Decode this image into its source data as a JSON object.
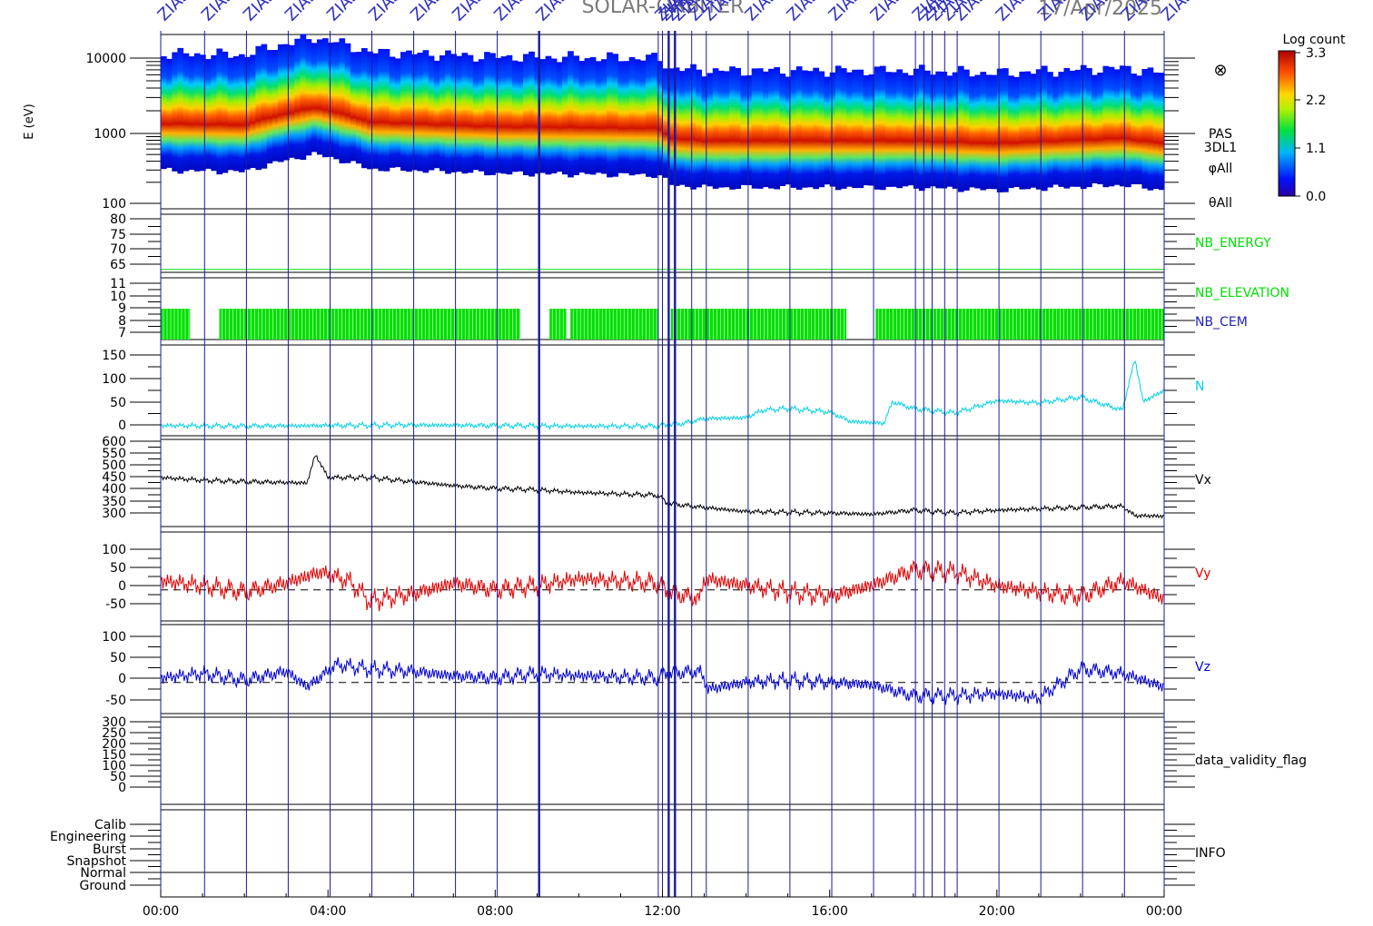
{
  "header": {
    "instrument": "SOLAR-ORBITER",
    "date": "17/Apr/2025",
    "marker_label": "ZIAS"
  },
  "colorbar": {
    "title": "Log count",
    "ticks": [
      "3.3",
      "2.2",
      "1.1",
      "0.0"
    ],
    "range": [
      0.0,
      3.3
    ]
  },
  "spectrogram": {
    "ylabel": "E (eV)",
    "yticks": [
      "10000",
      "1000",
      "100"
    ],
    "labels": [
      "PAS",
      "3DL1",
      "φAll",
      "θAll"
    ],
    "symbol": "⊗"
  },
  "x_axis": {
    "ticks": [
      "00:00",
      "04:00",
      "08:00",
      "12:00",
      "16:00",
      "20:00",
      "00:00"
    ]
  },
  "colors": {
    "N": "#00d2e6",
    "Vx": "#000000",
    "Vy": "#e00000",
    "Vz": "#0000d0",
    "nb": "#00e000",
    "marker": "#1a1aa0"
  },
  "panels": [
    {
      "name": "NB_ENERGY",
      "label": "NB_ENERGY",
      "yticks": [
        "80",
        "75",
        "70",
        "65"
      ]
    },
    {
      "name": "NB_ELEVATION",
      "label": "NB_ELEVATION",
      "label2": "NB_CEM",
      "yticks": [
        "11",
        "10",
        "9",
        "8",
        "7"
      ]
    },
    {
      "name": "N",
      "label": "N",
      "yticks": [
        "150",
        "100",
        "50",
        "0"
      ]
    },
    {
      "name": "Vx",
      "label": "Vx",
      "yticks": [
        "600",
        "550",
        "500",
        "450",
        "400",
        "350",
        "300"
      ]
    },
    {
      "name": "Vy",
      "label": "Vy",
      "yticks": [
        "100",
        "50",
        "0",
        "-50"
      ]
    },
    {
      "name": "Vz",
      "label": "Vz",
      "yticks": [
        "100",
        "50",
        "0",
        "-50"
      ]
    },
    {
      "name": "data_validity_flag",
      "label": "data_validity_flag",
      "yticks": [
        "300",
        "250",
        "200",
        "150",
        "100",
        "50",
        "0"
      ]
    },
    {
      "name": "INFO",
      "label": "INFO",
      "yticks": [
        "Calib",
        "Engineering",
        "Burst",
        "Snapshot",
        "Normal",
        "Ground"
      ]
    }
  ],
  "chart_data": [
    {
      "type": "heatmap",
      "title": "SOLAR-ORBITER 17/Apr/2025",
      "xlabel": "",
      "ylabel": "E (eV)",
      "y_scale": "log",
      "ylim": [
        100,
        15000
      ],
      "colorbar_label": "Log count",
      "colorbar_range": [
        0.0,
        3.3
      ],
      "series": [
        {
          "name": "peak_energy_eV",
          "x_hours": [
            0,
            2,
            3.7,
            5,
            8,
            11.9,
            12.2,
            13,
            16,
            18,
            20,
            23,
            24
          ],
          "values": [
            1100,
            1050,
            1800,
            1150,
            1000,
            950,
            700,
            650,
            650,
            650,
            600,
            700,
            600
          ]
        }
      ]
    },
    {
      "type": "line",
      "title": "",
      "ylabel": "",
      "ylim": [
        0,
        160
      ],
      "series": [
        {
          "name": "N",
          "x_hours": [
            0,
            2,
            4,
            6,
            8,
            10,
            11.9,
            12.5,
            13,
            14,
            14.4,
            15,
            16,
            16.5,
            17.3,
            17.5,
            18,
            19,
            20,
            21,
            22,
            23,
            23.3,
            23.5,
            24
          ],
          "values": [
            18,
            17,
            18,
            19,
            18,
            17,
            17,
            22,
            30,
            32,
            45,
            48,
            42,
            25,
            22,
            60,
            48,
            40,
            62,
            58,
            68,
            45,
            135,
            60,
            80
          ]
        }
      ]
    },
    {
      "type": "line",
      "title": "",
      "ylabel": "",
      "ylim": [
        280,
        600
      ],
      "series": [
        {
          "name": "Vx",
          "x_hours": [
            0,
            1,
            2,
            3.5,
            3.7,
            4,
            5,
            6,
            7,
            8,
            9,
            10,
            11.9,
            12.1,
            13,
            14,
            16,
            17,
            18,
            19,
            20,
            21,
            22,
            23,
            23.3,
            24
          ],
          "values": [
            460,
            450,
            445,
            440,
            545,
            460,
            460,
            445,
            430,
            420,
            415,
            405,
            395,
            365,
            350,
            335,
            330,
            325,
            340,
            330,
            340,
            345,
            350,
            355,
            320,
            318
          ]
        }
      ]
    },
    {
      "type": "line",
      "title": "",
      "ylabel": "",
      "ylim": [
        -70,
        130
      ],
      "series": [
        {
          "name": "Vy",
          "x_hours": [
            0,
            1,
            2,
            3,
            3.8,
            4.5,
            5,
            6,
            7,
            8,
            9,
            10,
            11.9,
            12.1,
            12.9,
            13,
            14,
            15,
            16,
            17,
            18,
            19,
            20,
            21,
            22,
            23,
            24
          ],
          "values": [
            20,
            10,
            -5,
            15,
            40,
            20,
            -25,
            -10,
            15,
            0,
            10,
            25,
            15,
            -5,
            -20,
            25,
            10,
            -5,
            -15,
            10,
            45,
            40,
            10,
            -5,
            -15,
            20,
            -20
          ]
        }
      ]
    },
    {
      "type": "line",
      "title": "",
      "ylabel": "",
      "ylim": [
        -70,
        130
      ],
      "series": [
        {
          "name": "Vz",
          "x_hours": [
            0,
            1,
            2,
            3,
            3.5,
            4.2,
            5,
            6,
            7,
            8,
            9,
            10,
            11.9,
            12.1,
            12.9,
            13.1,
            14,
            15,
            16,
            17,
            18,
            19,
            20,
            21,
            22,
            23,
            24
          ],
          "values": [
            10,
            20,
            5,
            25,
            -10,
            40,
            30,
            25,
            15,
            10,
            20,
            15,
            10,
            20,
            25,
            -15,
            0,
            5,
            0,
            -5,
            -30,
            -30,
            -25,
            -35,
            30,
            20,
            -10
          ]
        }
      ]
    },
    {
      "type": "bar",
      "title": "",
      "ylabel": "",
      "ylim": [
        7,
        11
      ],
      "series": [
        {
          "name": "NB_ELEVATION_coverage",
          "intervals_hours": [
            [
              0,
              0.7
            ],
            [
              1.4,
              8.6
            ],
            [
              9.3,
              9.7
            ],
            [
              9.8,
              11.9
            ],
            [
              12.2,
              16.4
            ],
            [
              17.1,
              24
            ]
          ],
          "values": [
            9,
            9,
            9,
            9,
            9,
            9
          ]
        }
      ]
    },
    {
      "type": "line",
      "title": "",
      "ylabel": "",
      "ylim": [
        62,
        82
      ],
      "series": [
        {
          "name": "NB_ENERGY",
          "x_hours": [
            0,
            24
          ],
          "values": [
            63,
            63
          ]
        }
      ]
    }
  ],
  "markers": {
    "x_hours": [
      0,
      1.05,
      2.05,
      3.05,
      4.05,
      5.05,
      6.05,
      7.05,
      8.05,
      9.05,
      11.9,
      12.0,
      12.15,
      12.3,
      12.7,
      13.05,
      14.05,
      15.05,
      16.05,
      17.05,
      18.05,
      18.25,
      18.45,
      18.75,
      19.05,
      20.05,
      21.05,
      22.05,
      23.05,
      24.0
    ],
    "bold_x_hours": [
      9.05,
      12.15,
      12.3
    ]
  }
}
